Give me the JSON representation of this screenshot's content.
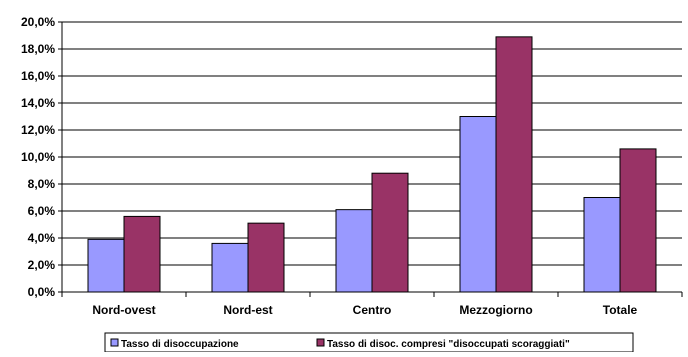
{
  "chart_data": {
    "type": "bar",
    "title": "",
    "xlabel": "",
    "ylabel": "",
    "categories": [
      "Nord-ovest",
      "Nord-est",
      "Centro",
      "Mezzogiorno",
      "Totale"
    ],
    "series": [
      {
        "name": "Tasso di disoccupazione",
        "values": [
          3.9,
          3.6,
          6.1,
          13.0,
          7.0
        ],
        "color": "#9999ff"
      },
      {
        "name": "Tasso di disoc. compresi \"disoccupati scoraggiati\"",
        "values": [
          5.6,
          5.1,
          8.8,
          18.9,
          10.6
        ],
        "color": "#993366"
      }
    ],
    "ylim": [
      0,
      20
    ],
    "yticks": [
      "0,0%",
      "2,0%",
      "4,0%",
      "6,0%",
      "8,0%",
      "10,0%",
      "12,0%",
      "14,0%",
      "16,0%",
      "18,0%",
      "20,0%"
    ],
    "grid": true,
    "legend": "bottom"
  }
}
